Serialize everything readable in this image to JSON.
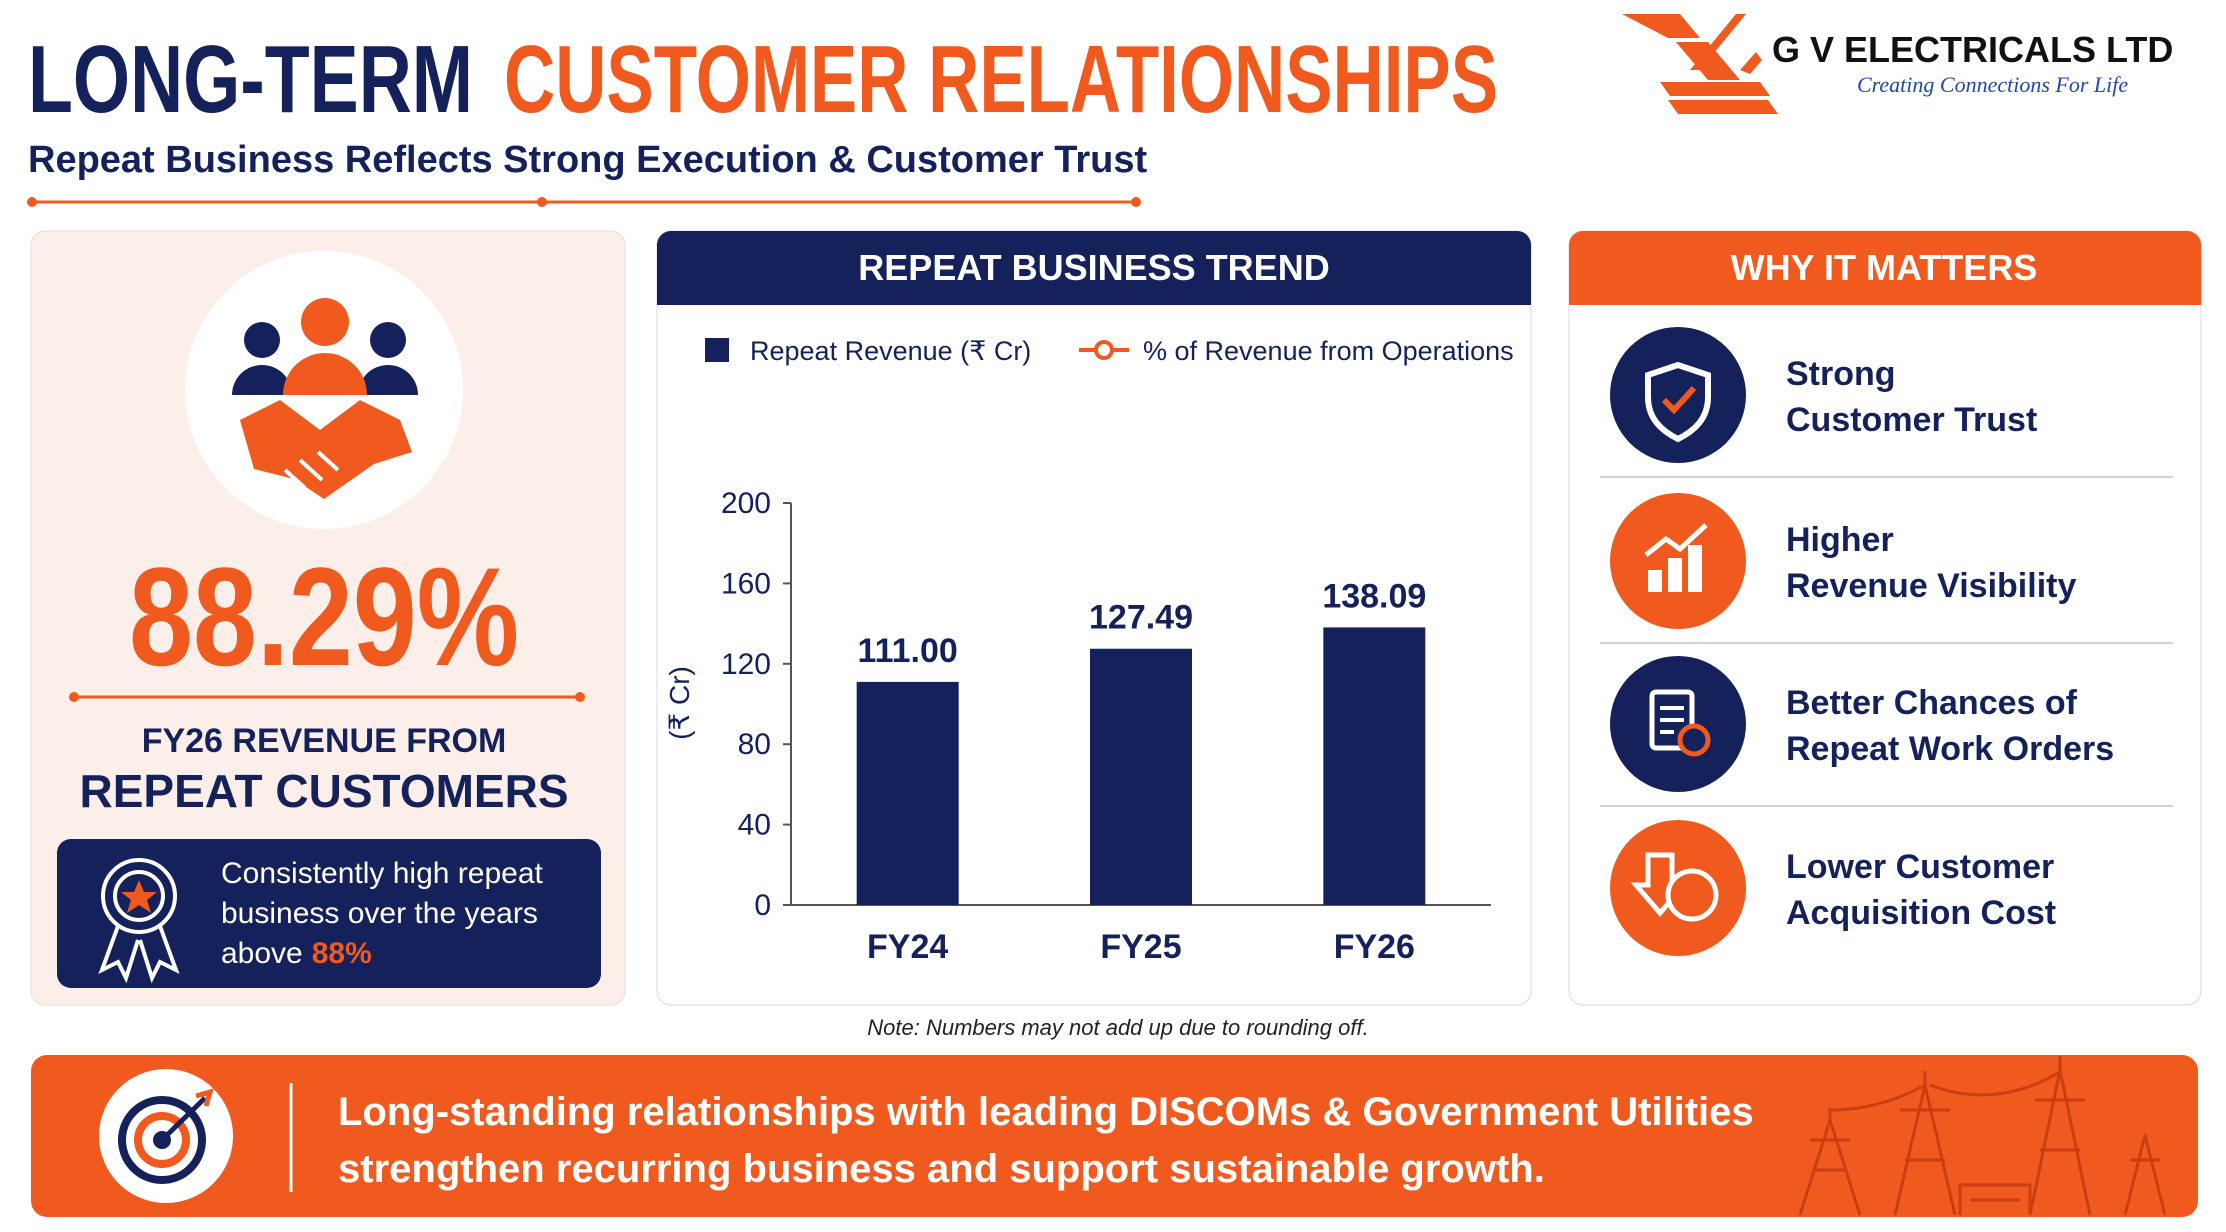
{
  "header": {
    "title_part1": "LONG-TERM",
    "title_part2": "CUSTOMER RELATIONSHIPS",
    "subtitle": "Repeat Business Reflects Strong Execution & Customer Trust"
  },
  "logo": {
    "name": "G V ELECTRICALS LTD",
    "tagline": "Creating Connections For Life"
  },
  "highlight": {
    "value": "88.29%",
    "caption_line1": "FY26 REVENUE FROM",
    "caption_line2": "REPEAT CUSTOMERS",
    "note_lines": [
      "Consistently high repeat",
      "business over the years",
      "above"
    ],
    "note_highlight": "88%"
  },
  "chart_data": {
    "type": "bar",
    "title": "REPEAT BUSINESS TREND",
    "y_label": "(₹ Cr)",
    "categories": [
      "FY24",
      "FY25",
      "FY26"
    ],
    "series": [
      {
        "name": "Repeat Revenue (₹ Cr)",
        "color": "#14215a",
        "values": [
          111.0,
          127.49,
          138.09
        ],
        "value_labels": [
          "111.00",
          "127.49",
          "138.09"
        ]
      },
      {
        "name": "% of Revenue from Operations",
        "color": "#f05a1e",
        "values": [
          null,
          null,
          null
        ]
      }
    ],
    "ylim": [
      0,
      200
    ],
    "yticks": [
      0,
      40,
      80,
      120,
      160,
      200
    ]
  },
  "chart_note": "Note: Numbers may not add up due to rounding off.",
  "why_it_matters": {
    "title": "WHY IT MATTERS",
    "items": [
      {
        "lines": [
          "Strong",
          "Customer Trust"
        ]
      },
      {
        "lines": [
          "Higher",
          "Revenue Visibility"
        ]
      },
      {
        "lines": [
          "Better Chances of",
          "Repeat Work Orders"
        ]
      },
      {
        "lines": [
          "Lower Customer",
          "Acquisition Cost"
        ]
      }
    ]
  },
  "banner": {
    "lines": [
      "Long-standing relationships with leading DISCOMs & Government Utilities",
      "strengthen recurring business and support sustainable growth."
    ]
  }
}
